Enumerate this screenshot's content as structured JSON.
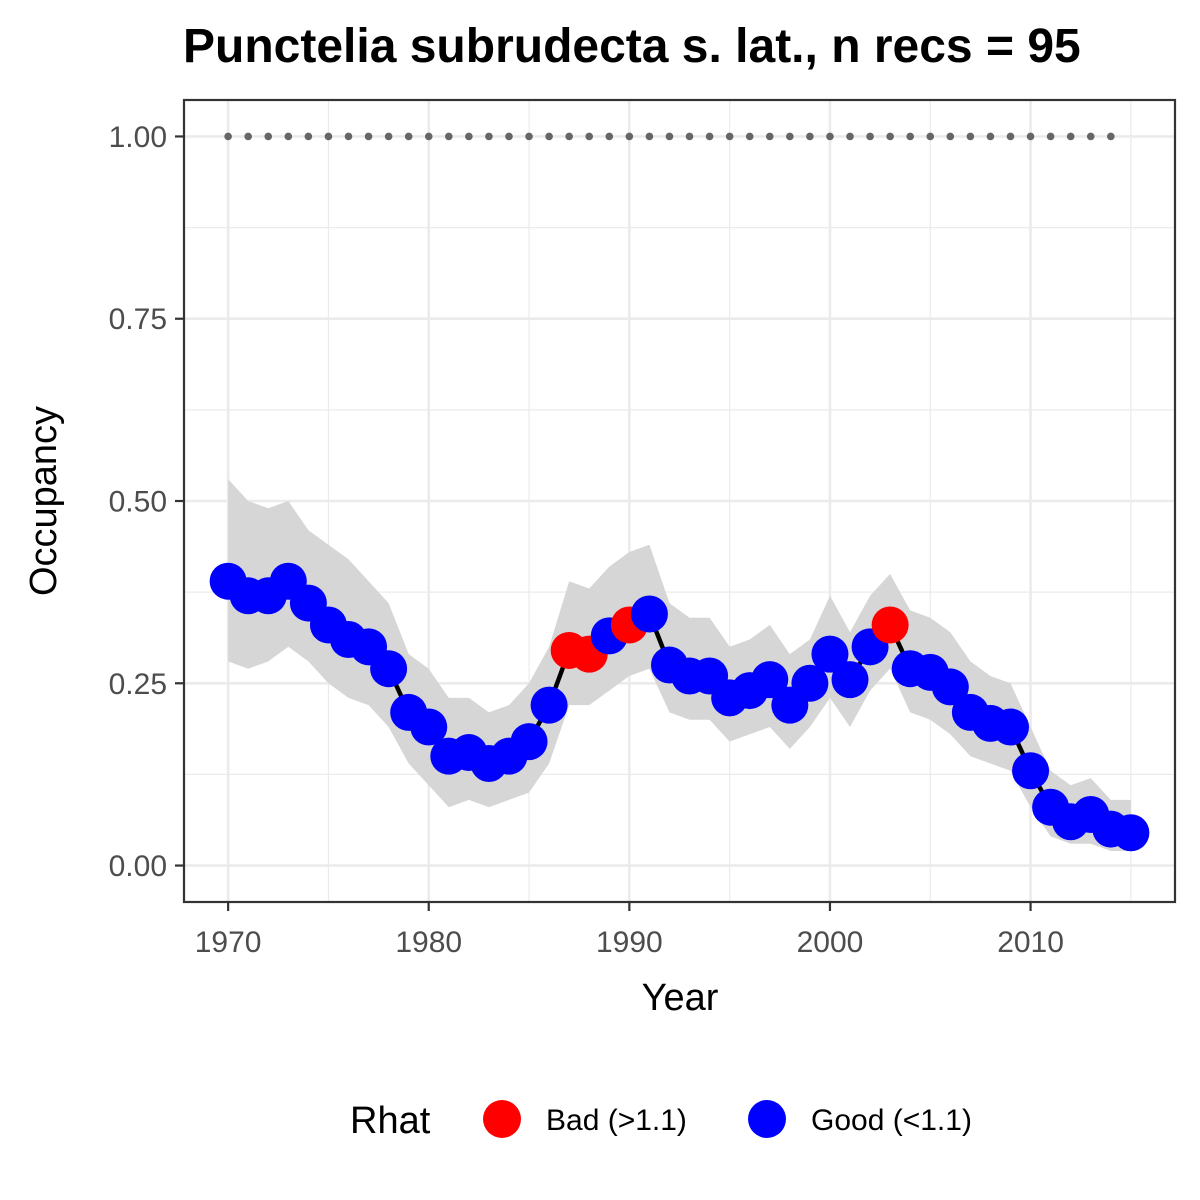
{
  "chart_data": {
    "type": "line",
    "title": "Punctelia subrudecta s. lat., n recs = 95",
    "xlabel": "Year",
    "ylabel": "Occupancy",
    "xlim": [
      1967.8,
      2017.2
    ],
    "ylim": [
      -0.05,
      1.05
    ],
    "x_ticks": [
      1970,
      1980,
      1990,
      2000,
      2010
    ],
    "x_tick_labels": [
      "1970",
      "1980",
      "1990",
      "2000",
      "2010"
    ],
    "y_ticks": [
      0.0,
      0.25,
      0.5,
      0.75,
      1.0
    ],
    "y_tick_labels": [
      "0.00",
      "0.25",
      "0.50",
      "0.75",
      "1.00"
    ],
    "y_minor_ticks": [
      0.125,
      0.375,
      0.625,
      0.875
    ],
    "x_minor_ticks": [
      1975,
      1985,
      1995,
      2005,
      2015
    ],
    "grid": true,
    "legend_position": "bottom",
    "colors": {
      "bad": "#ff0000",
      "good": "#0000ff",
      "ribbon": "#d6d6d6",
      "line": "#000000",
      "reference": "#666666",
      "grid": "#ebebeb",
      "panel_border": "#333333"
    },
    "legend": {
      "title": "Rhat",
      "entries": [
        {
          "label": "Bad (>1.1)",
          "color": "#ff0000"
        },
        {
          "label": "Good (<1.1)",
          "color": "#0000ff"
        }
      ]
    },
    "reference_line": {
      "y": 1.0,
      "x_range": [
        1970,
        2014
      ],
      "style": "dotted"
    },
    "series": [
      {
        "x": [
          1970,
          1971,
          1972,
          1973,
          1974,
          1975,
          1976,
          1977,
          1978,
          1979,
          1980,
          1981,
          1982,
          1983,
          1984,
          1985,
          1986,
          1987,
          1988,
          1989,
          1990,
          1991,
          1992,
          1993,
          1994,
          1995,
          1996,
          1997,
          1998,
          1999,
          2000,
          2001,
          2002,
          2003,
          2004,
          2005,
          2006,
          2007,
          2008,
          2009,
          2010,
          2011,
          2012,
          2013,
          2014,
          2015
        ],
        "y": [
          0.39,
          0.37,
          0.37,
          0.39,
          0.36,
          0.33,
          0.31,
          0.3,
          0.27,
          0.21,
          0.19,
          0.15,
          0.155,
          0.14,
          0.15,
          0.17,
          0.22,
          0.295,
          0.29,
          0.315,
          0.33,
          0.345,
          0.275,
          0.26,
          0.26,
          0.23,
          0.24,
          0.255,
          0.22,
          0.25,
          0.29,
          0.255,
          0.3,
          0.33,
          0.27,
          0.265,
          0.245,
          0.21,
          0.195,
          0.19,
          0.13,
          0.08,
          0.06,
          0.07,
          0.05,
          0.045
        ],
        "lower": [
          0.28,
          0.27,
          0.28,
          0.3,
          0.28,
          0.25,
          0.23,
          0.22,
          0.19,
          0.14,
          0.11,
          0.08,
          0.09,
          0.08,
          0.09,
          0.1,
          0.14,
          0.22,
          0.22,
          0.24,
          0.26,
          0.27,
          0.21,
          0.2,
          0.2,
          0.17,
          0.18,
          0.19,
          0.16,
          0.19,
          0.23,
          0.19,
          0.24,
          0.27,
          0.21,
          0.2,
          0.18,
          0.15,
          0.14,
          0.13,
          0.08,
          0.04,
          0.03,
          0.03,
          0.02,
          0.02
        ],
        "upper": [
          0.53,
          0.5,
          0.49,
          0.5,
          0.46,
          0.44,
          0.42,
          0.39,
          0.36,
          0.29,
          0.27,
          0.23,
          0.23,
          0.21,
          0.22,
          0.25,
          0.3,
          0.39,
          0.38,
          0.41,
          0.43,
          0.44,
          0.36,
          0.34,
          0.34,
          0.3,
          0.31,
          0.33,
          0.29,
          0.31,
          0.37,
          0.32,
          0.37,
          0.4,
          0.35,
          0.34,
          0.32,
          0.28,
          0.26,
          0.25,
          0.19,
          0.13,
          0.11,
          0.12,
          0.09,
          0.09
        ],
        "rhat": [
          "good",
          "good",
          "good",
          "good",
          "good",
          "good",
          "good",
          "good",
          "good",
          "good",
          "good",
          "good",
          "good",
          "good",
          "good",
          "good",
          "good",
          "bad",
          "bad",
          "good",
          "bad",
          "good",
          "good",
          "good",
          "good",
          "good",
          "good",
          "good",
          "good",
          "good",
          "good",
          "good",
          "good",
          "bad",
          "good",
          "good",
          "good",
          "good",
          "good",
          "good",
          "good",
          "good",
          "good",
          "good",
          "good",
          "good"
        ]
      }
    ]
  }
}
